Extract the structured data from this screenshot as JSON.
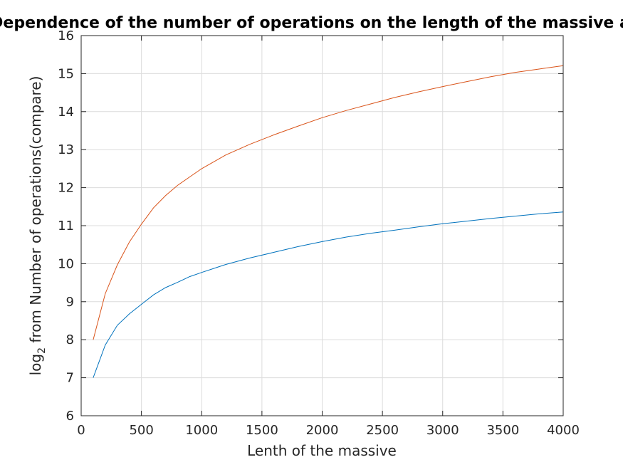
{
  "chart_data": {
    "type": "line",
    "title": "Dependence of the number of operations on the length of the massive at a",
    "xlabel": "Lenth of the massive",
    "ylabel_prefix": "log",
    "ylabel_sub": "2",
    "ylabel_rest": " from Number of operations(compare)",
    "xlim": [
      0,
      4000
    ],
    "ylim": [
      6,
      16
    ],
    "xticks": [
      0,
      500,
      1000,
      1500,
      2000,
      2500,
      3000,
      3500,
      4000
    ],
    "yticks": [
      6,
      7,
      8,
      9,
      10,
      11,
      12,
      13,
      14,
      15,
      16
    ],
    "grid": true,
    "legend": "none",
    "series": [
      {
        "color": "#0072BD",
        "x": [
          100,
          200,
          300,
          400,
          500,
          600,
          700,
          800,
          900,
          1000,
          1200,
          1400,
          1600,
          1800,
          2000,
          2200,
          2400,
          2600,
          2800,
          3000,
          3200,
          3400,
          3600,
          3800,
          4000
        ],
        "y": [
          7.0,
          7.86,
          8.38,
          8.68,
          8.93,
          9.18,
          9.37,
          9.51,
          9.66,
          9.77,
          9.98,
          10.15,
          10.3,
          10.45,
          10.58,
          10.7,
          10.8,
          10.88,
          10.97,
          11.05,
          11.12,
          11.19,
          11.25,
          11.31,
          11.36
        ]
      },
      {
        "color": "#D95319",
        "x": [
          100,
          200,
          300,
          400,
          500,
          600,
          700,
          800,
          900,
          1000,
          1200,
          1400,
          1600,
          1800,
          2000,
          2200,
          2400,
          2600,
          2800,
          3000,
          3200,
          3400,
          3600,
          3800,
          4000
        ],
        "y": [
          8.0,
          9.21,
          9.97,
          10.57,
          11.04,
          11.47,
          11.79,
          12.06,
          12.28,
          12.5,
          12.86,
          13.14,
          13.39,
          13.62,
          13.84,
          14.03,
          14.2,
          14.37,
          14.52,
          14.66,
          14.79,
          14.92,
          15.03,
          15.12,
          15.21
        ]
      }
    ]
  }
}
